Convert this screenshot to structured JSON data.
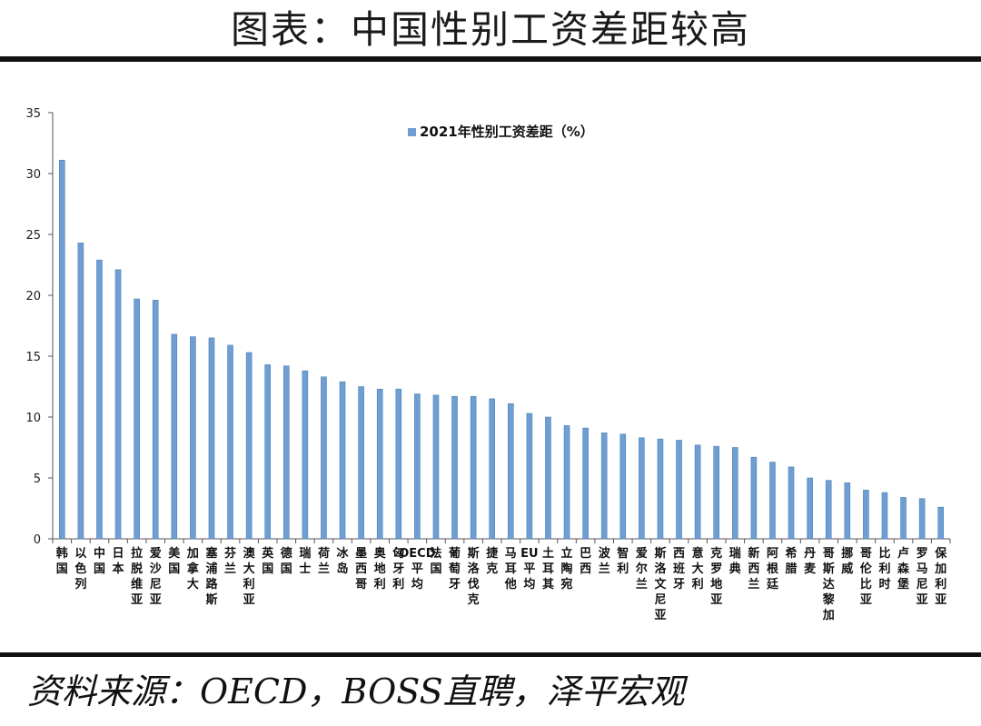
{
  "header": {
    "title": "图表：中国性别工资差距较高"
  },
  "footer": {
    "source": "资料来源：OECD，BOSS直聘，泽平宏观"
  },
  "chart_data": {
    "type": "bar",
    "legend": "2021年性别工资差距（%）",
    "legend_position": "top-center",
    "ylim": [
      0,
      35
    ],
    "yticks": [
      0,
      5,
      10,
      15,
      20,
      25,
      30,
      35
    ],
    "grid": false,
    "bar_color": "#6f9fd2",
    "categories": [
      "韩国",
      "以色列",
      "中国",
      "日本",
      "拉脱维亚",
      "爱沙尼亚",
      "美国",
      "加拿大",
      "塞浦路斯",
      "芬兰",
      "澳大利亚",
      "英国",
      "德国",
      "瑞士",
      "荷兰",
      "冰岛",
      "墨西哥",
      "奥地利",
      "匈牙利",
      "OECD平均",
      "法国",
      "葡萄牙",
      "斯洛伐克",
      "捷克",
      "马耳他",
      "EU平均",
      "土耳其",
      "立陶宛",
      "巴西",
      "波兰",
      "智利",
      "爱尔兰",
      "斯洛文尼亚",
      "西班牙",
      "意大利",
      "克罗地亚",
      "瑞典",
      "新西兰",
      "阿根廷",
      "希腊",
      "丹麦",
      "哥斯达黎加",
      "挪威",
      "哥伦比亚",
      "比利时",
      "卢森堡",
      "罗马尼亚",
      "保加利亚"
    ],
    "values": [
      31.1,
      24.3,
      22.9,
      22.1,
      19.7,
      19.6,
      16.8,
      16.6,
      16.5,
      15.9,
      15.3,
      14.3,
      14.2,
      13.8,
      13.3,
      12.9,
      12.5,
      12.3,
      12.3,
      11.9,
      11.8,
      11.7,
      11.7,
      11.5,
      11.1,
      10.3,
      10.0,
      9.3,
      9.1,
      8.7,
      8.6,
      8.3,
      8.2,
      8.1,
      7.7,
      7.6,
      7.5,
      6.7,
      6.3,
      5.9,
      5.0,
      4.8,
      4.6,
      4.0,
      3.8,
      3.4,
      3.3,
      2.6
    ]
  }
}
